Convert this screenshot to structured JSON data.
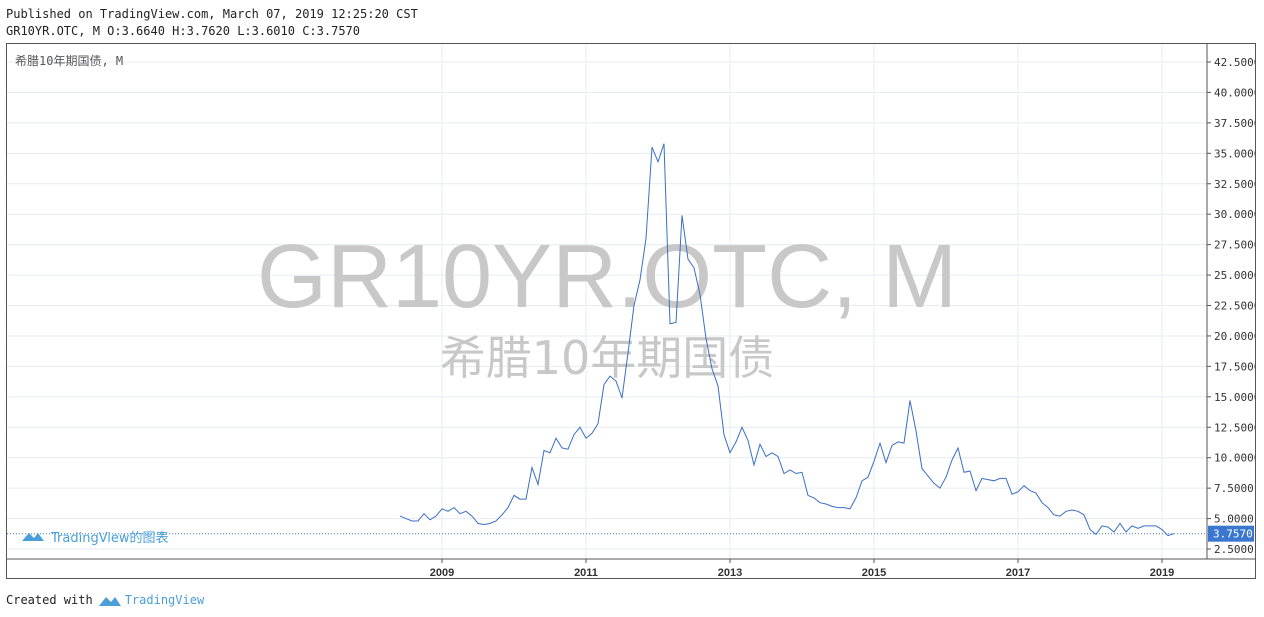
{
  "header": {
    "published": "Published on TradingView.com, March 07, 2019 12:25:20 CST",
    "ohlc": "GR10YR.OTC, M O:3.6640 H:3.7620 L:3.6010 C:3.7570"
  },
  "chart_title": "希腊10年期国债, M",
  "watermark": {
    "symbol": "GR10YR.OTC, M",
    "name": "希腊10年期国债"
  },
  "branding": {
    "inner": "TradingView的图表",
    "footer_prefix": "Created with",
    "footer_brand": "TradingView",
    "logo_icon": "tradingview-cloud-icon"
  },
  "colors": {
    "line": "#3a6fc4",
    "price_label_bg": "#3a78cf",
    "brand": "#4a9fd8",
    "watermark": "#c8c8c8",
    "grid": "#e6ecf2"
  },
  "chart_data": {
    "type": "line",
    "symbol": "GR10YR.OTC",
    "interval": "M",
    "last_value": 3.757,
    "last_value_label": "3.7570",
    "y_ticks": [
      "42.5000",
      "40.0000",
      "37.5000",
      "35.0000",
      "32.5000",
      "30.0000",
      "27.5000",
      "25.0000",
      "22.5000",
      "20.0000",
      "17.5000",
      "15.0000",
      "12.5000",
      "10.0000",
      "7.5000",
      "5.0000",
      "2.5000"
    ],
    "x_ticks": [
      "2009",
      "2011",
      "2013",
      "2015",
      "2017",
      "2019"
    ],
    "ylim": [
      2.5,
      42.5
    ],
    "series": [
      {
        "x": [
          "2008-06",
          "2008-07",
          "2008-08",
          "2008-09",
          "2008-10",
          "2008-11",
          "2008-12",
          "2009-01",
          "2009-02",
          "2009-03",
          "2009-04",
          "2009-05",
          "2009-06",
          "2009-07",
          "2009-08",
          "2009-09",
          "2009-10",
          "2009-11",
          "2009-12",
          "2010-01",
          "2010-02",
          "2010-03",
          "2010-04",
          "2010-05",
          "2010-06",
          "2010-07",
          "2010-08",
          "2010-09",
          "2010-10",
          "2010-11",
          "2010-12",
          "2011-01",
          "2011-02",
          "2011-03",
          "2011-04",
          "2011-05",
          "2011-06",
          "2011-07",
          "2011-08",
          "2011-09",
          "2011-10",
          "2011-11",
          "2011-12",
          "2012-01",
          "2012-02",
          "2012-03",
          "2012-04",
          "2012-05",
          "2012-06",
          "2012-07",
          "2012-08",
          "2012-09",
          "2012-10",
          "2012-11",
          "2012-12",
          "2013-01",
          "2013-02",
          "2013-03",
          "2013-04",
          "2013-05",
          "2013-06",
          "2013-07",
          "2013-08",
          "2013-09",
          "2013-10",
          "2013-11",
          "2013-12",
          "2014-01",
          "2014-02",
          "2014-03",
          "2014-04",
          "2014-05",
          "2014-06",
          "2014-07",
          "2014-08",
          "2014-09",
          "2014-10",
          "2014-11",
          "2014-12",
          "2015-01",
          "2015-02",
          "2015-03",
          "2015-04",
          "2015-05",
          "2015-06",
          "2015-07",
          "2015-08",
          "2015-09",
          "2015-10",
          "2015-11",
          "2015-12",
          "2016-01",
          "2016-02",
          "2016-03",
          "2016-04",
          "2016-05",
          "2016-06",
          "2016-07",
          "2016-08",
          "2016-09",
          "2016-10",
          "2016-11",
          "2016-12",
          "2017-01",
          "2017-02",
          "2017-03",
          "2017-04",
          "2017-05",
          "2017-06",
          "2017-07",
          "2017-08",
          "2017-09",
          "2017-10",
          "2017-11",
          "2017-12",
          "2018-01",
          "2018-02",
          "2018-03",
          "2018-04",
          "2018-05",
          "2018-06",
          "2018-07",
          "2018-08",
          "2018-09",
          "2018-10",
          "2018-11",
          "2018-12",
          "2019-01",
          "2019-02",
          "2019-03"
        ],
        "y": [
          5.2,
          5.0,
          4.8,
          4.8,
          5.4,
          4.9,
          5.2,
          5.8,
          5.6,
          5.9,
          5.4,
          5.6,
          5.2,
          4.6,
          4.5,
          4.6,
          4.8,
          5.3,
          5.9,
          6.9,
          6.6,
          6.6,
          9.2,
          7.8,
          10.6,
          10.4,
          11.6,
          10.8,
          10.7,
          11.9,
          12.5,
          11.6,
          12.0,
          12.8,
          16.0,
          16.7,
          16.3,
          14.9,
          18.6,
          22.5,
          24.6,
          28.0,
          35.5,
          34.3,
          35.8,
          21.0,
          21.1,
          29.9,
          26.3,
          25.6,
          23.4,
          19.8,
          17.3,
          15.9,
          11.9,
          10.4,
          11.3,
          12.5,
          11.4,
          9.4,
          11.1,
          10.1,
          10.4,
          10.1,
          8.7,
          9.0,
          8.7,
          8.8,
          6.9,
          6.7,
          6.3,
          6.2,
          6.0,
          5.9,
          5.9,
          5.8,
          6.7,
          8.1,
          8.4,
          9.7,
          11.2,
          9.6,
          11.0,
          11.3,
          11.2,
          14.7,
          12.2,
          9.1,
          8.5,
          7.9,
          7.5,
          8.4,
          9.8,
          10.8,
          8.8,
          8.9,
          7.3,
          8.3,
          8.2,
          8.1,
          8.3,
          8.3,
          7.0,
          7.2,
          7.7,
          7.3,
          7.1,
          6.3,
          5.9,
          5.3,
          5.2,
          5.6,
          5.7,
          5.6,
          5.3,
          4.1,
          3.7,
          4.4,
          4.3,
          3.9,
          4.6,
          3.9,
          4.4,
          4.2,
          4.4,
          4.4,
          4.4,
          4.1,
          3.6,
          3.757
        ]
      }
    ],
    "grid": true,
    "price_scale": "right"
  }
}
